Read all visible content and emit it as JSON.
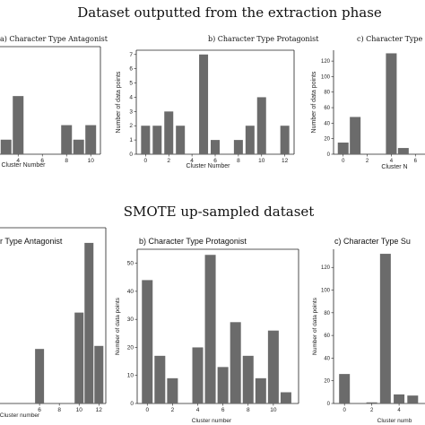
{
  "titles": {
    "top": "Dataset outputted from the extraction phase",
    "bottom": "SMOTE up-sampled dataset"
  },
  "chart_data": [
    {
      "id": "top-antagonist",
      "type": "bar",
      "title": "a) Character Type Antagonist",
      "xlabel": "Cluster Number",
      "ylabel": "",
      "x": [
        3,
        4,
        8,
        9,
        10
      ],
      "values": [
        1,
        4,
        2,
        1,
        2
      ],
      "ylim": [
        0,
        7.4
      ],
      "xticks": [
        4,
        6,
        8,
        10
      ],
      "yticks": []
    },
    {
      "id": "top-protagonist",
      "type": "bar",
      "title": "b) Character Type Protagonist",
      "xlabel": "Cluster Number",
      "ylabel": "Number of data points",
      "x": [
        0,
        1,
        2,
        3,
        5,
        6,
        8,
        9,
        10,
        12
      ],
      "values": [
        2,
        2,
        3,
        2,
        7,
        1,
        1,
        2,
        4,
        2
      ],
      "ylim": [
        0,
        7.3
      ],
      "xticks": [
        0,
        2,
        4,
        6,
        8,
        10,
        12
      ],
      "yticks": [
        0,
        1,
        2,
        3,
        4,
        5,
        6,
        7
      ]
    },
    {
      "id": "top-sup",
      "type": "bar",
      "title": "c) Character Type",
      "xlabel": "Cluster N",
      "ylabel": "Number of data points",
      "x": [
        0,
        1,
        4,
        5
      ],
      "values": [
        15,
        48,
        130,
        8
      ],
      "ylim": [
        0,
        134
      ],
      "xticks": [
        0,
        2,
        4,
        6
      ],
      "yticks": [
        0,
        20,
        40,
        60,
        80,
        100,
        120
      ]
    },
    {
      "id": "bottom-antagonist",
      "type": "bar",
      "title": "r Type Antagonist",
      "xlabel": "Cluster number",
      "ylabel": "",
      "x": [
        6,
        10,
        11,
        12
      ],
      "values": [
        18,
        30,
        53,
        19
      ],
      "ylim": [
        0,
        58
      ],
      "xticks": [
        6,
        8,
        10,
        12
      ],
      "yticks": []
    },
    {
      "id": "bottom-protagonist",
      "type": "bar",
      "title": "b) Character Type Protagonist",
      "xlabel": "Cluster number",
      "ylabel": "Number of data points",
      "x": [
        0,
        1,
        2,
        4,
        5,
        6,
        7,
        8,
        9,
        10,
        11
      ],
      "values": [
        44,
        17,
        9,
        20,
        53,
        13,
        29,
        17,
        9,
        26,
        4
      ],
      "ylim": [
        0,
        55
      ],
      "xticks": [
        0,
        2,
        4,
        6,
        8,
        10
      ],
      "yticks": [
        0,
        10,
        20,
        30,
        40,
        50
      ]
    },
    {
      "id": "bottom-sup",
      "type": "bar",
      "title": "c) Character Type Su",
      "xlabel": "Cluster numb",
      "ylabel": "Number of data points",
      "x": [
        0,
        2,
        3,
        4,
        5
      ],
      "values": [
        26,
        1,
        132,
        8,
        7
      ],
      "ylim": [
        0,
        136
      ],
      "xticks": [
        0,
        2,
        4
      ],
      "yticks": [
        0,
        20,
        40,
        60,
        80,
        100,
        120
      ]
    }
  ]
}
